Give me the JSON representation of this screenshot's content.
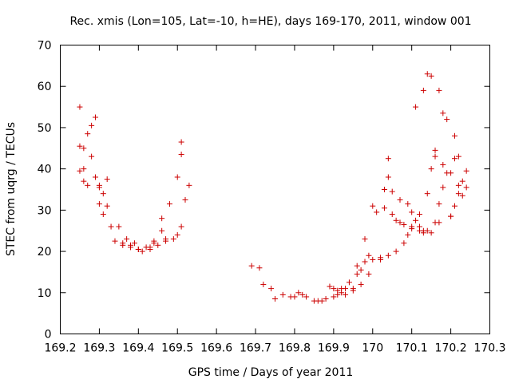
{
  "chart_data": {
    "type": "scatter",
    "title": "Rec. xmis (Lon=105, Lat=-10, h=HE), days 169-170, 2011, window 001",
    "xlabel": "GPS time / Days of year 2011",
    "ylabel": "STEC from uqrg / TECUs",
    "xlim": [
      169.2,
      170.3
    ],
    "ylim": [
      0,
      70
    ],
    "x_ticks": [
      169.2,
      169.3,
      169.4,
      169.5,
      169.6,
      169.7,
      169.8,
      169.9,
      170.0,
      170.1,
      170.2,
      170.3
    ],
    "x_tick_labels": [
      "169.2",
      "169.3",
      "169.4",
      "169.5",
      "169.6",
      "169.7",
      "169.8",
      "169.9",
      "170",
      "170.1",
      "170.2",
      "170.3"
    ],
    "y_ticks": [
      0,
      10,
      20,
      30,
      40,
      50,
      60,
      70
    ],
    "y_tick_labels": [
      "0",
      "10",
      "20",
      "30",
      "40",
      "50",
      "60",
      "70"
    ],
    "grid": false,
    "marker_color": "#cc0000",
    "marker": "plus",
    "series": [
      {
        "x": [
          169.25,
          169.25,
          169.25,
          169.26,
          169.26,
          169.26,
          169.27,
          169.27,
          169.28,
          169.28,
          169.29,
          169.29,
          169.3,
          169.3,
          169.31,
          169.31,
          169.32,
          169.32,
          169.33,
          169.34,
          169.35,
          169.36,
          169.37,
          169.38,
          169.39,
          169.4,
          169.41,
          169.42,
          169.43,
          169.44,
          169.45,
          169.46,
          169.47,
          169.48,
          169.49,
          169.5,
          169.5,
          169.51,
          169.51,
          169.52
        ],
        "y": [
          55.0,
          45.5,
          39.5,
          40.0,
          37.0,
          45.0,
          48.5,
          36.0,
          43.0,
          50.5,
          52.5,
          38.0,
          31.5,
          36.0,
          29.0,
          34.0,
          31.0,
          37.5,
          26.0,
          22.5,
          26.0,
          21.5,
          23.0,
          21.5,
          22.0,
          20.5,
          20.0,
          21.0,
          20.5,
          22.5,
          21.5,
          25.0,
          22.5,
          31.5,
          23.0,
          24.0,
          38.0,
          43.5,
          26.0,
          32.5
        ]
      },
      {
        "x": [
          169.51,
          169.53,
          169.69,
          169.71,
          169.72,
          169.74,
          169.75,
          169.77,
          169.79,
          169.8,
          169.81,
          169.82,
          169.83,
          169.85,
          169.86,
          169.87,
          169.88,
          169.89,
          169.9,
          169.9,
          169.91,
          169.91,
          169.92,
          169.92,
          169.93,
          169.93,
          169.94,
          169.95,
          169.95,
          169.96,
          169.96,
          169.97,
          169.97,
          169.98,
          169.98,
          169.99
        ],
        "y": [
          46.5,
          36.0,
          16.5,
          16.0,
          12.0,
          11.0,
          8.5,
          9.5,
          9.0,
          9.0,
          10.0,
          9.5,
          9.0,
          8.0,
          8.0,
          8.0,
          8.5,
          11.5,
          11.0,
          9.0,
          10.5,
          9.5,
          10.0,
          11.0,
          9.5,
          11.0,
          12.5,
          11.0,
          10.5,
          14.5,
          16.5,
          12.0,
          15.5,
          17.5,
          23.0,
          19.0
        ]
      },
      {
        "x": [
          169.99,
          170.0,
          170.01,
          170.02,
          170.03,
          170.04,
          170.04,
          170.05,
          170.05,
          170.06,
          170.07,
          170.08,
          170.09,
          170.1,
          170.1,
          170.11,
          170.12,
          170.12,
          170.13,
          170.13,
          170.14,
          170.14,
          170.15,
          170.15,
          170.16,
          170.16,
          170.17,
          170.17,
          170.18,
          170.18,
          170.19,
          170.19,
          170.2,
          170.2,
          170.21,
          170.21,
          170.22,
          170.22,
          170.23,
          170.23,
          170.24,
          170.24
        ],
        "y": [
          14.5,
          31.0,
          29.5,
          18.0,
          35.0,
          42.5,
          38.0,
          29.0,
          34.5,
          20.0,
          32.5,
          22.0,
          31.5,
          29.5,
          26.0,
          55.0,
          26.0,
          29.0,
          59.0,
          25.0,
          63.0,
          34.0,
          62.5,
          40.0,
          44.5,
          43.0,
          59.0,
          27.0,
          53.5,
          41.0,
          52.0,
          39.0,
          39.0,
          28.5,
          48.0,
          42.5,
          43.0,
          36.0,
          37.0,
          33.5,
          39.5,
          35.5
        ]
      },
      {
        "x": [
          169.3,
          169.36,
          169.38,
          169.4,
          169.43,
          169.44,
          169.46,
          169.47,
          170.0,
          170.02,
          170.03,
          170.04,
          170.06,
          170.07,
          170.08,
          170.09,
          170.1,
          170.11,
          170.12,
          170.13,
          170.14,
          170.15,
          170.16,
          170.17,
          170.18,
          170.2,
          170.21,
          170.22
        ],
        "y": [
          35.5,
          22.0,
          21.0,
          20.5,
          21.0,
          22.0,
          28.0,
          23.0,
          18.0,
          18.5,
          30.5,
          19.0,
          27.5,
          27.0,
          26.5,
          24.0,
          25.5,
          27.5,
          25.0,
          24.5,
          25.0,
          24.5,
          27.0,
          31.5,
          35.5,
          28.5,
          31.0,
          34.0
        ]
      }
    ]
  }
}
